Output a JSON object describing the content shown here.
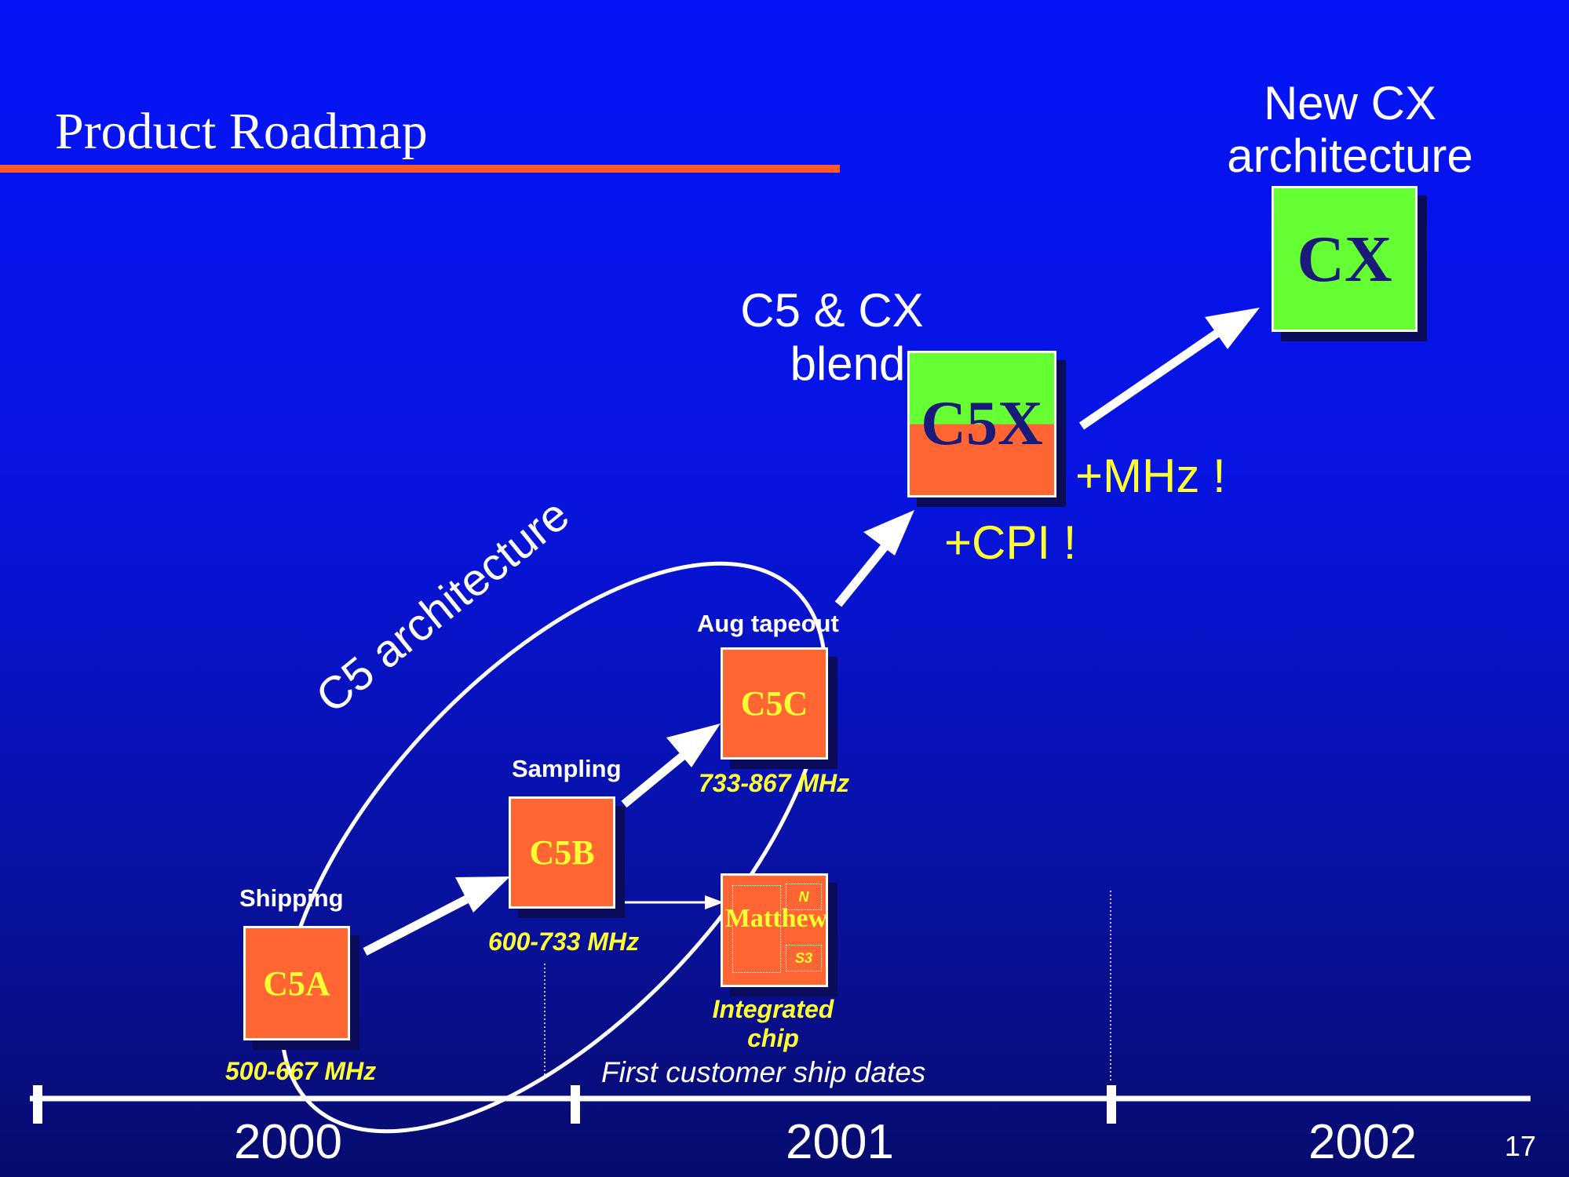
{
  "slide": {
    "title": "Product Roadmap",
    "page_number": "17"
  },
  "chips": {
    "c5a": {
      "label": "C5A",
      "status": "Shipping",
      "freq": "500-667 MHz"
    },
    "c5b": {
      "label": "C5B",
      "status": "Sampling",
      "freq": "600-733 MHz"
    },
    "c5c": {
      "label": "C5C",
      "status": "Aug tapeout",
      "freq": "733-867 MHz"
    },
    "matthew": {
      "label": "Matthew",
      "block_n": "N",
      "block_s3": "S3",
      "caption_line1": "Integrated",
      "caption_line2": "chip"
    },
    "c5x": {
      "label": "C5X",
      "caption_line1": "C5 & CX",
      "caption_line2": "blend"
    },
    "cx": {
      "label": "CX",
      "caption_line1": "New CX",
      "caption_line2": "architecture"
    }
  },
  "annotations": {
    "c5_architecture": "C5 architecture",
    "mhz": "+MHz !",
    "cpi": "+CPI !",
    "ship_dates": "First customer ship dates"
  },
  "timeline": {
    "years": [
      "2000",
      "2001",
      "2002"
    ]
  },
  "colors": {
    "background_top": "#0414f6",
    "background_bottom": "#070b6e",
    "c5_chip": "#ff6633",
    "cx_chip": "#66ff33",
    "chip_label": "#ffff33",
    "cx_label": "#1a1a7a",
    "title_rule": "#ff5a2a"
  }
}
